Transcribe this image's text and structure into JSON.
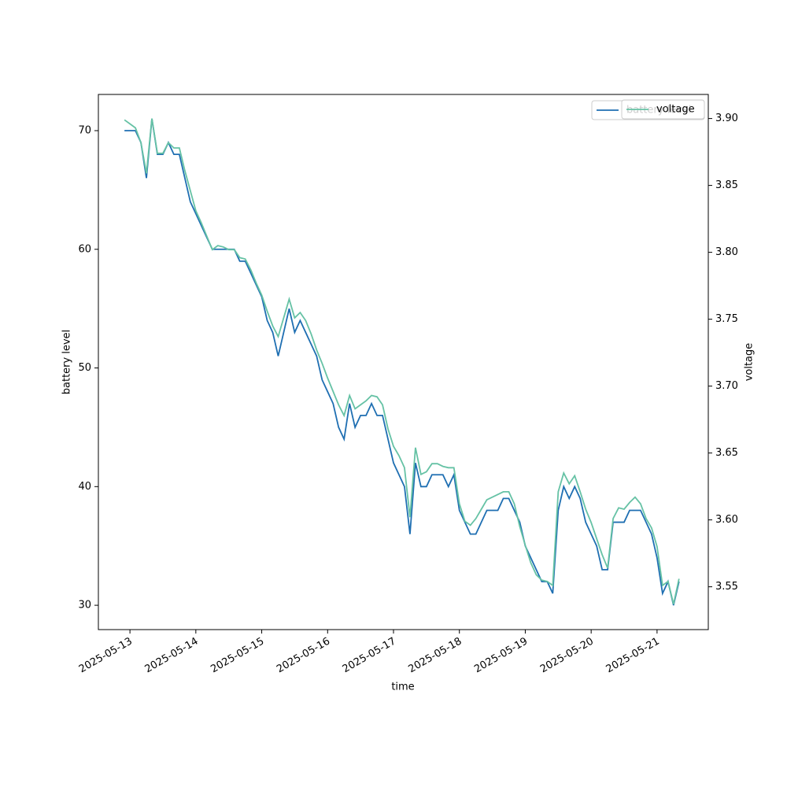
{
  "chart_data": {
    "type": "line",
    "xlabel": "time",
    "ylabel": "battery level",
    "y2label": "voltage",
    "legend": "upper right",
    "xlim": [
      "2025-05-12T12:30",
      "2025-05-21T18:40"
    ],
    "xticks": [
      "2025-05-13",
      "2025-05-14",
      "2025-05-15",
      "2025-05-16",
      "2025-05-17",
      "2025-05-18",
      "2025-05-19",
      "2025-05-20",
      "2025-05-21"
    ],
    "ylim": [
      27.95,
      73.05
    ],
    "yticks": [
      30,
      40,
      50,
      60,
      70
    ],
    "y2lim": [
      3.518,
      3.918
    ],
    "y2ticks": [
      3.55,
      {
        "value": 3.6,
        "label": "3.60"
      },
      3.65,
      {
        "value": 3.7,
        "label": "3.70"
      },
      3.75,
      {
        "value": 3.8,
        "label": "3.80"
      },
      3.85,
      {
        "value": 3.9,
        "label": "3.90"
      }
    ],
    "x": [
      "2025-05-12T22:00",
      "2025-05-13T00:00",
      "2025-05-13T02:00",
      "2025-05-13T04:00",
      "2025-05-13T06:00",
      "2025-05-13T08:00",
      "2025-05-13T10:00",
      "2025-05-13T12:00",
      "2025-05-13T14:00",
      "2025-05-13T16:00",
      "2025-05-13T18:00",
      "2025-05-13T20:00",
      "2025-05-13T22:00",
      "2025-05-14T00:00",
      "2025-05-14T02:00",
      "2025-05-14T04:00",
      "2025-05-14T06:00",
      "2025-05-14T08:00",
      "2025-05-14T10:00",
      "2025-05-14T12:00",
      "2025-05-14T14:00",
      "2025-05-14T16:00",
      "2025-05-14T18:00",
      "2025-05-14T20:00",
      "2025-05-14T22:00",
      "2025-05-15T00:00",
      "2025-05-15T02:00",
      "2025-05-15T04:00",
      "2025-05-15T06:00",
      "2025-05-15T08:00",
      "2025-05-15T10:00",
      "2025-05-15T12:00",
      "2025-05-15T14:00",
      "2025-05-15T16:00",
      "2025-05-15T18:00",
      "2025-05-15T20:00",
      "2025-05-15T22:00",
      "2025-05-16T00:00",
      "2025-05-16T02:00",
      "2025-05-16T04:00",
      "2025-05-16T06:00",
      "2025-05-16T08:00",
      "2025-05-16T10:00",
      "2025-05-16T12:00",
      "2025-05-16T14:00",
      "2025-05-16T16:00",
      "2025-05-16T18:00",
      "2025-05-16T20:00",
      "2025-05-16T22:00",
      "2025-05-17T00:00",
      "2025-05-17T02:00",
      "2025-05-17T04:00",
      "2025-05-17T06:00",
      "2025-05-17T08:00",
      "2025-05-17T10:00",
      "2025-05-17T12:00",
      "2025-05-17T14:00",
      "2025-05-17T16:00",
      "2025-05-17T18:00",
      "2025-05-17T20:00",
      "2025-05-17T22:00",
      "2025-05-18T00:00",
      "2025-05-18T02:00",
      "2025-05-18T04:00",
      "2025-05-18T06:00",
      "2025-05-18T08:00",
      "2025-05-18T10:00",
      "2025-05-18T12:00",
      "2025-05-18T14:00",
      "2025-05-18T16:00",
      "2025-05-18T18:00",
      "2025-05-18T20:00",
      "2025-05-18T22:00",
      "2025-05-19T00:00",
      "2025-05-19T02:00",
      "2025-05-19T04:00",
      "2025-05-19T06:00",
      "2025-05-19T08:00",
      "2025-05-19T10:00",
      "2025-05-19T12:00",
      "2025-05-19T14:00",
      "2025-05-19T16:00",
      "2025-05-19T18:00",
      "2025-05-19T20:00",
      "2025-05-19T22:00",
      "2025-05-20T00:00",
      "2025-05-20T02:00",
      "2025-05-20T04:00",
      "2025-05-20T06:00",
      "2025-05-20T08:00",
      "2025-05-20T10:00",
      "2025-05-20T12:00",
      "2025-05-20T14:00",
      "2025-05-20T16:00",
      "2025-05-20T18:00",
      "2025-05-20T20:00",
      "2025-05-20T22:00",
      "2025-05-21T00:00",
      "2025-05-21T02:00",
      "2025-05-21T04:00",
      "2025-05-21T06:00",
      "2025-05-21T08:00"
    ],
    "series": [
      {
        "name": "battery level",
        "color": "#1f6fb2",
        "values": [
          70,
          70,
          70,
          69,
          66,
          71,
          68,
          68,
          69,
          68,
          68,
          66,
          64,
          63,
          62,
          61,
          60,
          60,
          60,
          60,
          60,
          59,
          59,
          58,
          57,
          56,
          54,
          53,
          51,
          53,
          55,
          53,
          54,
          53,
          52,
          51,
          49,
          48,
          47,
          45,
          44,
          47,
          45,
          46,
          46,
          47,
          46,
          46,
          44,
          42,
          41,
          40,
          36,
          42,
          40,
          40,
          41,
          41,
          41,
          40,
          41,
          38,
          37,
          36,
          36,
          37,
          38,
          38,
          38,
          39,
          39,
          38,
          37,
          35,
          34,
          33,
          32,
          32,
          31,
          38,
          40,
          39,
          40,
          39,
          37,
          36,
          35,
          33,
          33,
          37,
          37,
          37,
          38,
          38,
          38,
          37,
          36,
          34,
          31,
          32,
          30,
          32
        ]
      },
      {
        "name": "voltage",
        "color": "#66c2a5",
        "axis": "y2",
        "values": [
          3.899,
          3.896,
          3.893,
          3.882,
          3.859,
          3.9,
          3.874,
          3.874,
          3.882,
          3.878,
          3.878,
          3.861,
          3.846,
          3.831,
          3.822,
          3.812,
          3.802,
          3.805,
          3.804,
          3.802,
          3.802,
          3.796,
          3.795,
          3.787,
          3.777,
          3.768,
          3.756,
          3.745,
          3.737,
          3.751,
          3.765,
          3.751,
          3.755,
          3.749,
          3.739,
          3.727,
          3.717,
          3.706,
          3.696,
          3.686,
          3.678,
          3.693,
          3.683,
          3.686,
          3.689,
          3.693,
          3.692,
          3.686,
          3.668,
          3.655,
          3.648,
          3.639,
          3.602,
          3.654,
          3.634,
          3.636,
          3.642,
          3.642,
          3.64,
          3.639,
          3.639,
          3.612,
          3.599,
          3.596,
          3.601,
          3.608,
          3.615,
          3.617,
          3.619,
          3.621,
          3.621,
          3.612,
          3.595,
          3.581,
          3.568,
          3.559,
          3.555,
          3.554,
          3.551,
          3.621,
          3.635,
          3.627,
          3.633,
          3.621,
          3.608,
          3.598,
          3.586,
          3.574,
          3.564,
          3.601,
          3.609,
          3.608,
          3.613,
          3.617,
          3.612,
          3.601,
          3.594,
          3.58,
          3.551,
          3.554,
          3.537,
          3.556
        ]
      }
    ]
  }
}
